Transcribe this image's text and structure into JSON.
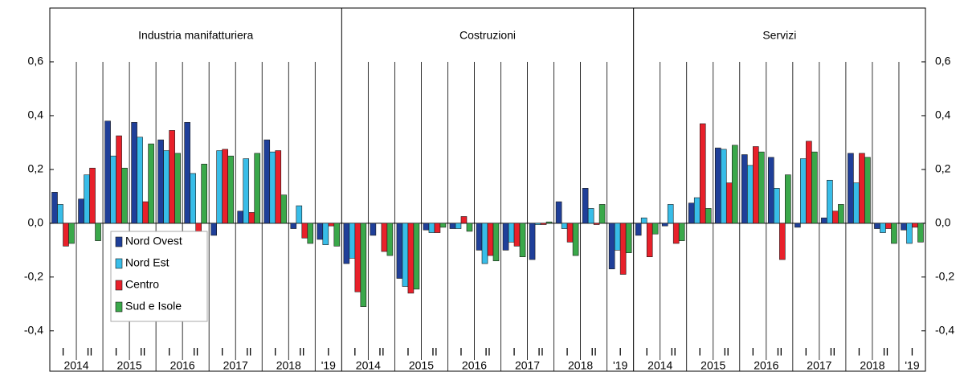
{
  "chart_data": {
    "type": "bar",
    "ylim": [
      -0.55,
      0.8
    ],
    "yticks": [
      {
        "value": -0.4,
        "label": "-0,4"
      },
      {
        "value": -0.2,
        "label": "-0,2"
      },
      {
        "value": 0,
        "label": "0,0"
      },
      {
        "value": 0.2,
        "label": "0,2"
      },
      {
        "value": 0.4,
        "label": "0,4"
      },
      {
        "value": 0.6,
        "label": "0,6"
      }
    ],
    "categories": [
      "I",
      "II",
      "I",
      "II",
      "I",
      "II",
      "I",
      "II",
      "I",
      "II",
      "I"
    ],
    "years": [
      "2014",
      null,
      "2015",
      null,
      "2016",
      null,
      "2017",
      null,
      "2018",
      null,
      "'19"
    ],
    "legend": "lower left",
    "series": [
      {
        "name": "Nord Ovest",
        "color": "#1f3f99"
      },
      {
        "name": "Nord Est",
        "color": "#38bde8"
      },
      {
        "name": "Centro",
        "color": "#e8202a"
      },
      {
        "name": "Sud e Isole",
        "color": "#3aa84a"
      }
    ],
    "panels": [
      {
        "title": "Industria  manifatturiera",
        "values": [
          [
            0.115,
            0.09,
            0.38,
            0.375,
            0.31,
            0.375,
            -0.045,
            0.045,
            0.31,
            -0.02,
            -0.06
          ],
          [
            0.07,
            0.18,
            0.25,
            0.32,
            0.27,
            0.185,
            0.27,
            0.24,
            0.265,
            0.065,
            -0.08
          ],
          [
            -0.085,
            0.205,
            0.325,
            0.08,
            0.345,
            -0.035,
            0.275,
            0.04,
            0.27,
            -0.055,
            -0.01
          ],
          [
            -0.075,
            -0.065,
            0.205,
            0.295,
            0.26,
            0.22,
            0.25,
            0.26,
            0.105,
            -0.075,
            -0.085
          ]
        ]
      },
      {
        "title": "Costruzioni",
        "values": [
          [
            -0.15,
            -0.045,
            -0.205,
            -0.025,
            -0.02,
            -0.1,
            -0.1,
            -0.135,
            0.08,
            0.13,
            -0.17
          ],
          [
            -0.13,
            0,
            -0.235,
            -0.035,
            -0.02,
            -0.15,
            -0.07,
            -0.005,
            -0.02,
            0.055,
            -0.1
          ],
          [
            -0.255,
            -0.105,
            -0.26,
            -0.035,
            0.025,
            -0.12,
            -0.085,
            -0.005,
            -0.07,
            -0.005,
            -0.19
          ],
          [
            -0.31,
            -0.12,
            -0.245,
            -0.015,
            -0.03,
            -0.14,
            -0.125,
            0.005,
            -0.12,
            0.07,
            -0.11
          ]
        ]
      },
      {
        "title": "Servizi",
        "values": [
          [
            -0.045,
            -0.01,
            0.075,
            0.28,
            0.255,
            0.245,
            -0.015,
            0.02,
            0.26,
            -0.02,
            -0.025
          ],
          [
            0.02,
            0.07,
            0.095,
            0.275,
            0.215,
            0.13,
            0.24,
            0.16,
            0.15,
            -0.035,
            -0.075
          ],
          [
            -0.125,
            -0.075,
            0.37,
            0.15,
            0.285,
            -0.135,
            0.305,
            0.045,
            0.26,
            -0.02,
            -0.015
          ],
          [
            -0.04,
            -0.065,
            0.055,
            0.29,
            0.265,
            0.18,
            0.265,
            0.07,
            0.245,
            -0.075,
            -0.07
          ]
        ]
      }
    ]
  }
}
